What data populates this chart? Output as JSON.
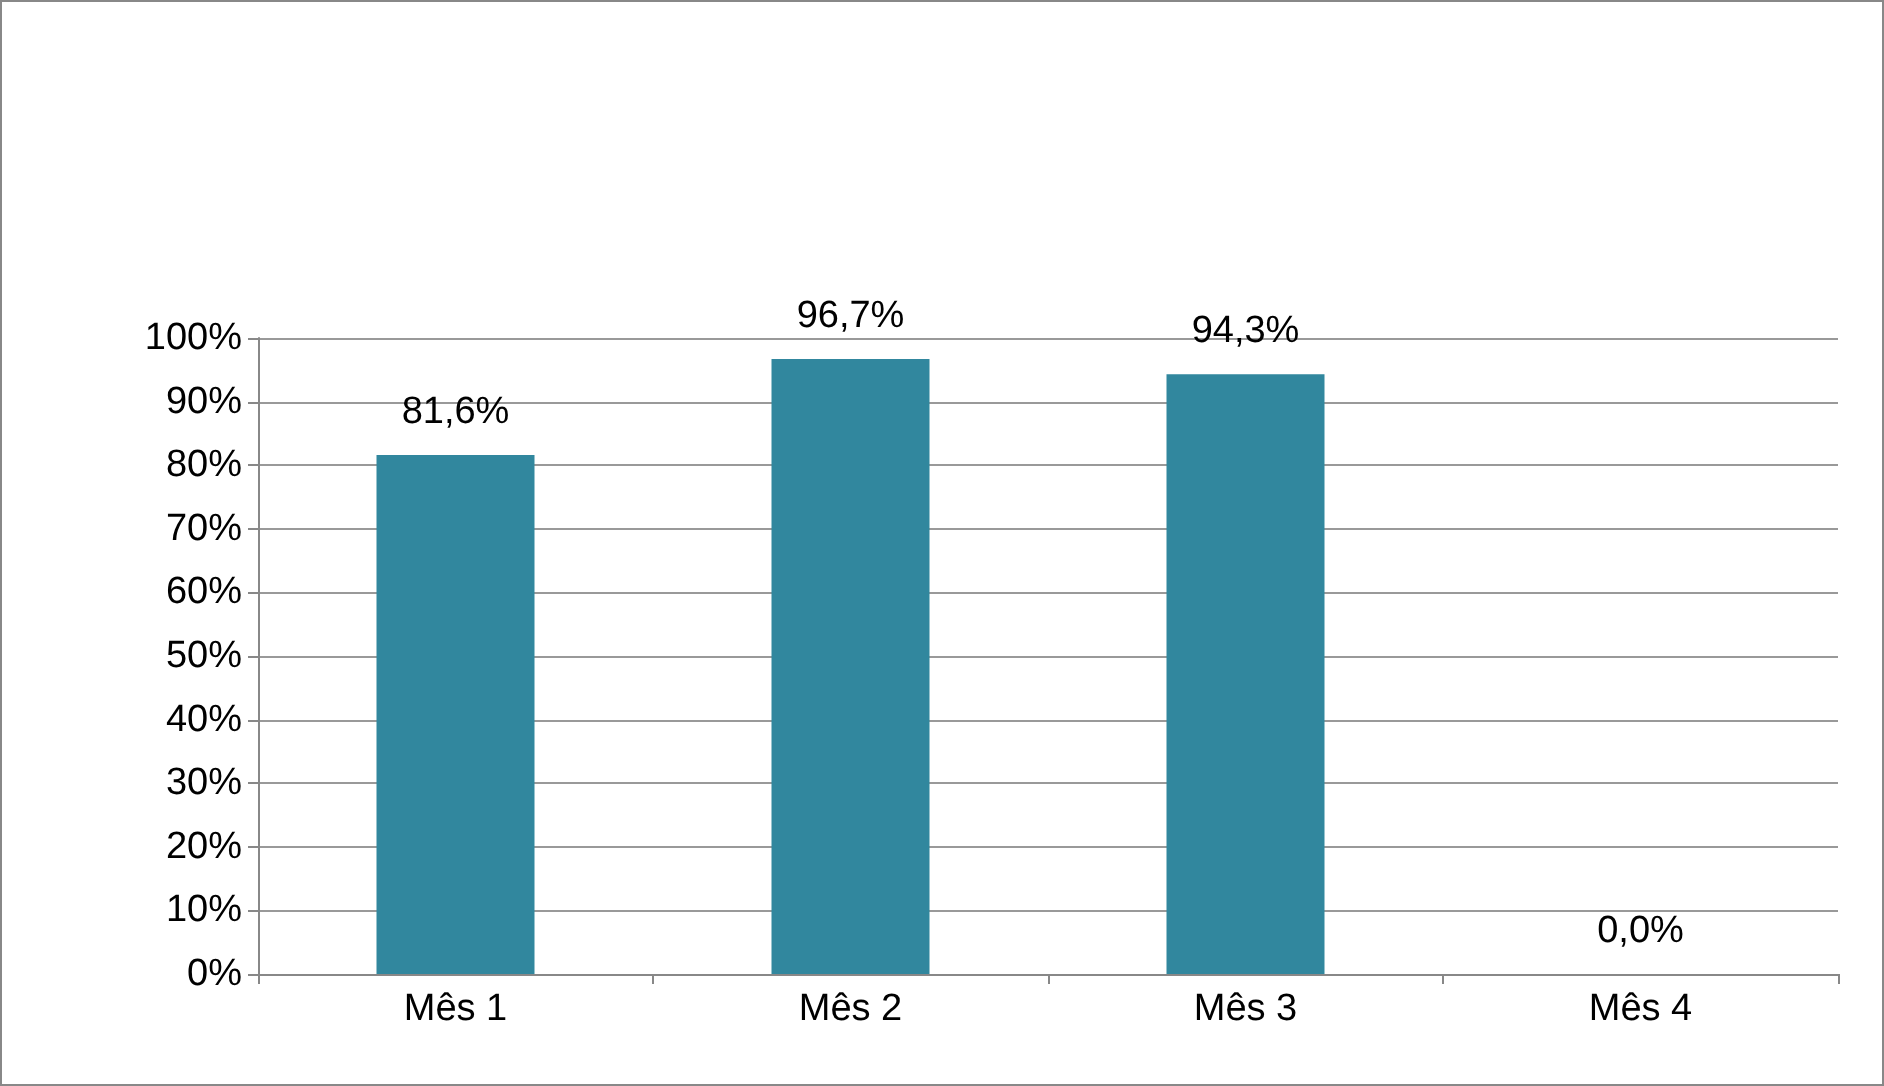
{
  "chart_data": {
    "type": "bar",
    "categories": [
      "Mês 1",
      "Mês 2",
      "Mês 3",
      "Mês 4"
    ],
    "values": [
      81.6,
      96.7,
      94.3,
      0.0
    ],
    "value_labels": [
      "81,6%",
      "96,7%",
      "94,3%",
      "0,0%"
    ],
    "color": "#31879e",
    "ylim": [
      0,
      100
    ],
    "yticks": [
      {
        "value": 0,
        "label": "0%"
      },
      {
        "value": 10,
        "label": "10%"
      },
      {
        "value": 20,
        "label": "20%"
      },
      {
        "value": 30,
        "label": "30%"
      },
      {
        "value": 40,
        "label": "40%"
      },
      {
        "value": 50,
        "label": "50%"
      },
      {
        "value": 60,
        "label": "60%"
      },
      {
        "value": 70,
        "label": "70%"
      },
      {
        "value": 80,
        "label": "80%"
      },
      {
        "value": 90,
        "label": "90%"
      },
      {
        "value": 100,
        "label": "100%"
      }
    ],
    "grid": "y"
  }
}
